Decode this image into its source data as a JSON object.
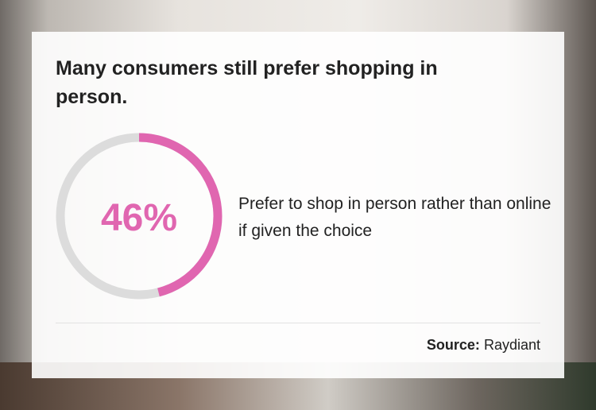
{
  "title": "Many consumers still prefer shopping in person.",
  "stat": {
    "value_label": "46%",
    "description": "Prefer to shop in person rather than online if given the choice"
  },
  "source": {
    "label": "Source:",
    "name": "Raydiant"
  },
  "colors": {
    "accent": "#e066b0",
    "track": "#dcdcdc"
  },
  "chart_data": {
    "type": "pie",
    "style": "donut",
    "values": [
      46,
      54
    ],
    "categories": [
      "Prefer to shop in person rather than online if given the choice",
      ""
    ],
    "colors": [
      "#e066b0",
      "#dcdcdc"
    ],
    "center_label": "46%"
  }
}
